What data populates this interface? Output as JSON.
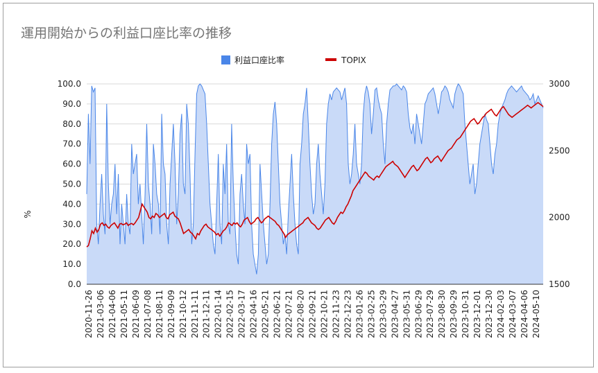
{
  "chart_data": {
    "type": "line",
    "title": "運用開始からの利益口座比率の推移",
    "ylabel_left": "%",
    "ylabel_right": "",
    "ylim_left": [
      0,
      100
    ],
    "yticks_left": [
      "0.0",
      "10.0",
      "20.0",
      "30.0",
      "40.0",
      "50.0",
      "60.0",
      "70.0",
      "80.0",
      "90.0",
      "100.0"
    ],
    "ylim_right": [
      1500,
      3000
    ],
    "yticks_right": [
      "1500",
      "2000",
      "2500",
      "3000"
    ],
    "x_tick_labels": [
      "2020-11-26",
      "2021-03-06",
      "2021-04-06",
      "2021-05-11",
      "2021-06-09",
      "2021-07-08",
      "2021-08-11",
      "2021-09-09",
      "2021-10-12",
      "2021-11-11",
      "2021-12-11",
      "2022-01-14",
      "2022-02-15",
      "2022-03-17",
      "2022-04-16",
      "2022-05-21",
      "2022-06-21",
      "2022-07-21",
      "2022-08-20",
      "2022-09-21",
      "2022-10-21",
      "2022-11-23",
      "2022-12-23",
      "2023-01-26",
      "2023-02-25",
      "2023-03-29",
      "2023-04-27",
      "2023-05-31",
      "2023-06-29",
      "2023-07-29",
      "2023-08-30",
      "2023-09-29",
      "2023-10-31",
      "2023-12-01",
      "2023-12-30",
      "2024-02-03",
      "2024-03-07",
      "2024-04-06",
      "2024-05-10"
    ],
    "grid": true,
    "legend_position": "top",
    "series": [
      {
        "name": "利益口座比率",
        "kind": "area",
        "axis": "left",
        "color": "#4a86e8",
        "fill": "#c9daf8",
        "values": [
          45,
          85,
          60,
          99,
          96,
          98,
          30,
          20,
          40,
          55,
          35,
          25,
          90,
          50,
          30,
          40,
          45,
          60,
          35,
          55,
          20,
          40,
          30,
          20,
          45,
          30,
          25,
          70,
          55,
          60,
          65,
          40,
          50,
          35,
          20,
          45,
          80,
          50,
          40,
          25,
          70,
          60,
          45,
          40,
          25,
          85,
          60,
          55,
          30,
          20,
          50,
          65,
          80,
          60,
          30,
          45,
          75,
          85,
          50,
          45,
          90,
          80,
          55,
          20,
          30,
          65,
          95,
          99,
          100,
          99,
          97,
          95,
          80,
          60,
          40,
          30,
          20,
          15,
          40,
          65,
          30,
          20,
          60,
          45,
          70,
          30,
          25,
          80,
          50,
          30,
          15,
          10,
          45,
          55,
          40,
          30,
          70,
          60,
          65,
          30,
          15,
          10,
          5,
          15,
          60,
          45,
          30,
          20,
          10,
          15,
          40,
          70,
          85,
          91,
          80,
          60,
          40,
          30,
          20,
          25,
          15,
          35,
          50,
          65,
          45,
          30,
          20,
          15,
          60,
          70,
          85,
          90,
          98,
          80,
          60,
          45,
          35,
          40,
          60,
          70,
          55,
          45,
          35,
          50,
          80,
          90,
          95,
          92,
          96,
          97,
          98,
          97,
          96,
          92,
          95,
          98,
          90,
          60,
          50,
          55,
          65,
          80,
          60,
          55,
          50,
          60,
          85,
          95,
          99,
          96,
          90,
          75,
          85,
          97,
          98,
          92,
          88,
          85,
          70,
          60,
          80,
          90,
          97,
          98,
          99,
          99,
          100,
          99,
          98,
          97,
          99,
          98,
          96,
          85,
          78,
          75,
          80,
          70,
          85,
          80,
          75,
          70,
          80,
          90,
          92,
          95,
          96,
          97,
          98,
          95,
          90,
          85,
          90,
          96,
          97,
          99,
          98,
          96,
          92,
          90,
          88,
          95,
          98,
          100,
          99,
          97,
          95,
          80,
          70,
          60,
          50,
          55,
          60,
          45,
          50,
          60,
          70,
          75,
          80,
          85,
          82,
          80,
          70,
          60,
          55,
          65,
          70,
          80,
          85,
          88,
          90,
          92,
          95,
          97,
          98,
          99,
          98,
          97,
          96,
          97,
          98,
          99,
          97,
          96,
          95,
          94,
          92,
          93,
          95,
          90,
          92,
          94,
          92,
          90,
          88
        ]
      },
      {
        "name": "TOPIX",
        "kind": "line",
        "axis": "right",
        "color": "#cc0000",
        "values": [
          1780,
          1790,
          1840,
          1900,
          1880,
          1920,
          1890,
          1910,
          1950,
          1960,
          1940,
          1950,
          1930,
          1920,
          1940,
          1950,
          1960,
          1940,
          1920,
          1950,
          1955,
          1945,
          1950,
          1960,
          1940,
          1950,
          1955,
          1945,
          1960,
          1980,
          2000,
          2050,
          2100,
          2080,
          2060,
          2040,
          2000,
          1990,
          2010,
          2000,
          2030,
          2020,
          2000,
          2010,
          2020,
          2030,
          2000,
          1990,
          2020,
          2030,
          2040,
          2010,
          2000,
          1990,
          1960,
          1920,
          1880,
          1890,
          1900,
          1910,
          1890,
          1880,
          1860,
          1840,
          1880,
          1870,
          1900,
          1920,
          1940,
          1950,
          1930,
          1920,
          1910,
          1900,
          1890,
          1870,
          1880,
          1860,
          1880,
          1900,
          1910,
          1930,
          1960,
          1950,
          1940,
          1960,
          1950,
          1960,
          1940,
          1930,
          1950,
          1980,
          1990,
          2000,
          1970,
          1950,
          1960,
          1970,
          1990,
          2000,
          1980,
          1960,
          1970,
          1990,
          2000,
          2010,
          2000,
          1990,
          1980,
          1970,
          1950,
          1940,
          1920,
          1900,
          1880,
          1850,
          1870,
          1880,
          1890,
          1900,
          1910,
          1920,
          1930,
          1940,
          1950,
          1960,
          1980,
          1990,
          2000,
          1980,
          1960,
          1950,
          1940,
          1920,
          1910,
          1920,
          1940,
          1960,
          1980,
          1990,
          2000,
          1980,
          1960,
          1950,
          1970,
          2000,
          2020,
          2040,
          2030,
          2050,
          2080,
          2100,
          2130,
          2160,
          2200,
          2220,
          2240,
          2260,
          2280,
          2300,
          2320,
          2340,
          2330,
          2310,
          2300,
          2290,
          2280,
          2300,
          2310,
          2300,
          2320,
          2340,
          2360,
          2380,
          2390,
          2400,
          2410,
          2420,
          2400,
          2390,
          2380,
          2360,
          2340,
          2320,
          2300,
          2320,
          2340,
          2360,
          2380,
          2390,
          2370,
          2350,
          2360,
          2380,
          2400,
          2420,
          2440,
          2450,
          2430,
          2410,
          2420,
          2440,
          2450,
          2460,
          2440,
          2420,
          2440,
          2460,
          2480,
          2500,
          2510,
          2520,
          2540,
          2560,
          2580,
          2590,
          2600,
          2620,
          2640,
          2660,
          2680,
          2700,
          2720,
          2730,
          2740,
          2720,
          2700,
          2710,
          2730,
          2750,
          2760,
          2780,
          2790,
          2800,
          2810,
          2790,
          2770,
          2760,
          2780,
          2800,
          2820,
          2830,
          2810,
          2790,
          2770,
          2760,
          2750,
          2760,
          2770,
          2780,
          2790,
          2800,
          2810,
          2820,
          2830,
          2840,
          2830,
          2820,
          2830,
          2840,
          2850,
          2860,
          2850,
          2840,
          2830
        ]
      }
    ]
  }
}
